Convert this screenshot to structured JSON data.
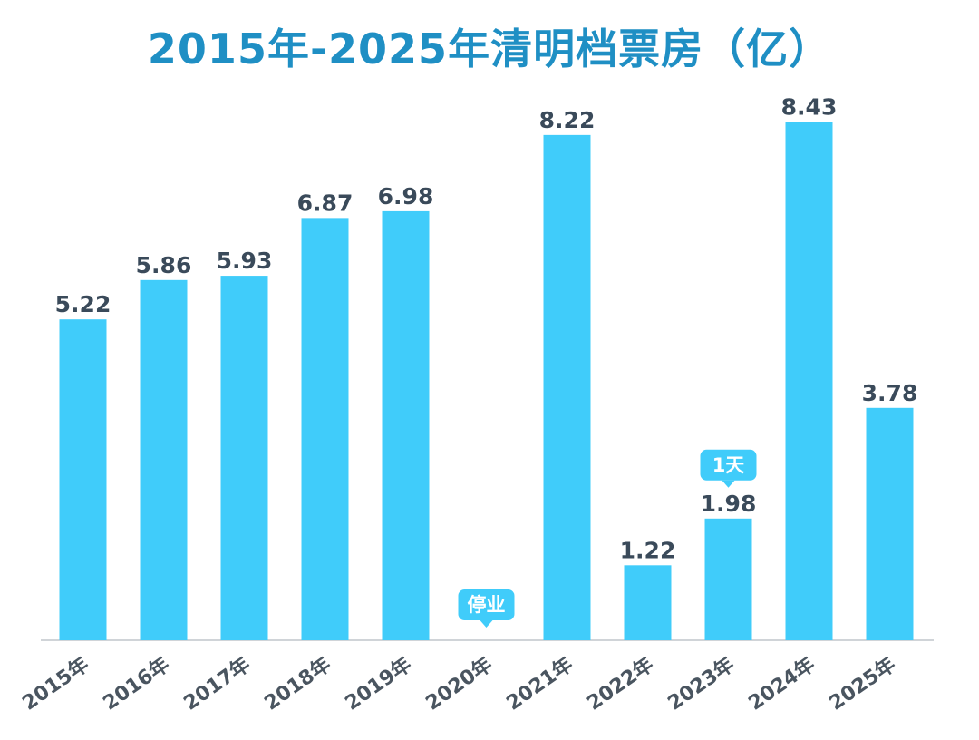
{
  "chart_data": {
    "type": "bar",
    "title": "2015年-2025年清明档票房（亿）",
    "categories": [
      "2015年",
      "2016年",
      "2017年",
      "2018年",
      "2019年",
      "2020年",
      "2021年",
      "2022年",
      "2023年",
      "2024年",
      "2025年"
    ],
    "values": [
      5.22,
      5.86,
      5.93,
      6.87,
      6.98,
      null,
      8.22,
      1.22,
      1.98,
      8.43,
      3.78
    ],
    "value_labels": [
      "5.22",
      "5.86",
      "5.93",
      "6.87",
      "6.98",
      "",
      "8.22",
      "1.22",
      "1.98",
      "8.43",
      "3.78"
    ],
    "annotations": [
      {
        "category": "2020年",
        "text": "停业"
      },
      {
        "category": "2023年",
        "text": "1天"
      }
    ],
    "ylim": [
      0,
      9
    ],
    "grid": false,
    "legend": "none",
    "colors": {
      "bar": "#40ccfa",
      "title": "#1f8fc4",
      "value_label": "#3a4a5a",
      "category_label": "#4a5560",
      "tag": "#40ccfa",
      "baseline": "#d0d4d8"
    }
  }
}
